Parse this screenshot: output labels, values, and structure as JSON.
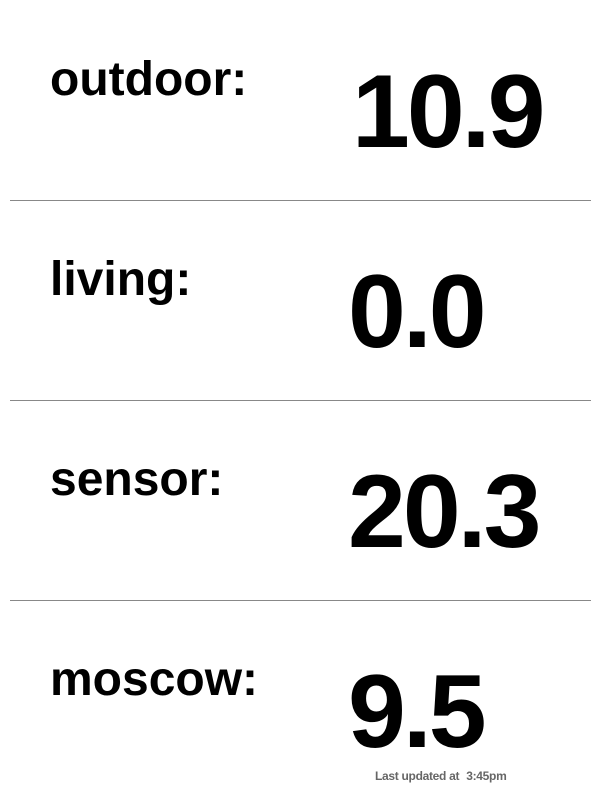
{
  "readings": [
    {
      "label": "outdoor:",
      "value": "10.9"
    },
    {
      "label": "living:",
      "value": "0.0"
    },
    {
      "label": "sensor:",
      "value": "20.3"
    },
    {
      "label": "moscow:",
      "value": "9.5"
    }
  ],
  "footer": {
    "prefix": "Last updated at",
    "time": "3:45pm"
  },
  "colors": {
    "text": "#000000",
    "divider": "#888888",
    "footer_text": "#666666",
    "background": "#ffffff"
  }
}
